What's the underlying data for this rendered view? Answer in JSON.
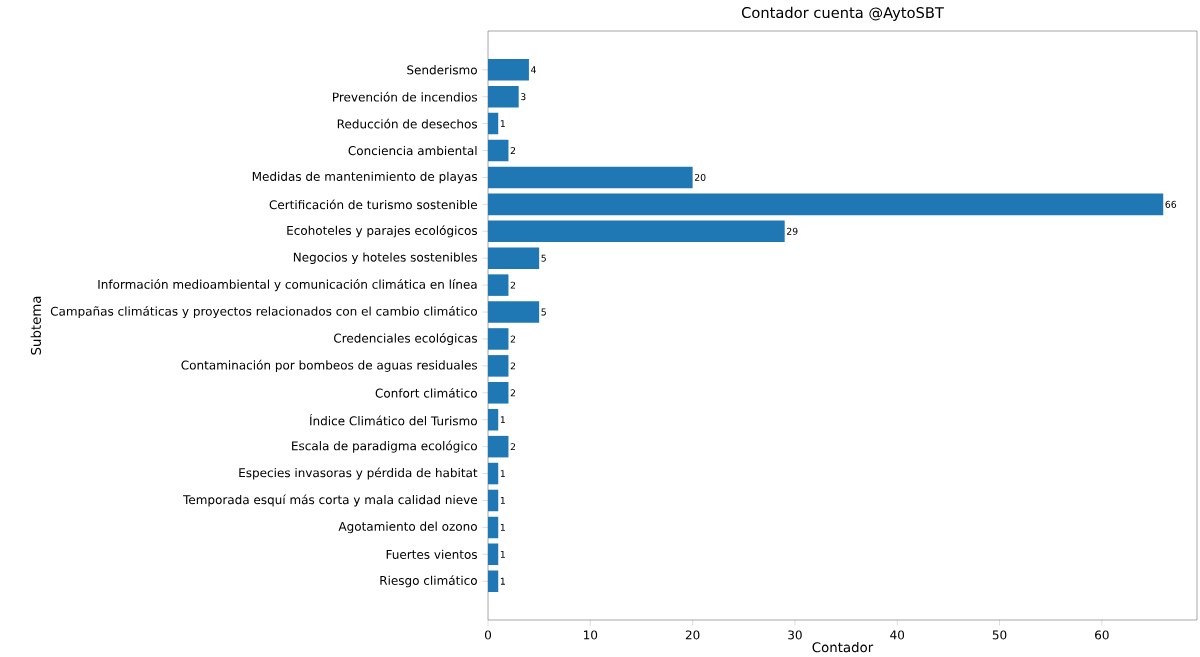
{
  "chart_data": {
    "type": "bar",
    "orientation": "horizontal",
    "title": "Contador cuenta @AytoSBT",
    "xlabel": "Contador",
    "ylabel": "Subtema",
    "categories": [
      "Senderismo",
      "Prevención de incendios",
      "Reducción de desechos",
      "Conciencia ambiental",
      "Medidas de mantenimiento de playas",
      "Certificación de turismo sostenible",
      "Ecohoteles y parajes ecológicos",
      "Negocios y hoteles sostenibles",
      "Información medioambiental y comunicación climática en línea",
      "Campañas climáticas y proyectos relacionados con el cambio climático",
      "Credenciales ecológicas",
      "Contaminación por bombeos de aguas residuales",
      "Confort climático",
      "Índice Climático del Turismo",
      "Escala de paradigma ecológico",
      "Especies invasoras y pérdida de habitat",
      "Temporada esquí más corta y mala calidad nieve",
      "Agotamiento del ozono",
      "Fuertes vientos",
      "Riesgo climático"
    ],
    "values": [
      4,
      3,
      1,
      2,
      20,
      66,
      29,
      5,
      2,
      5,
      2,
      2,
      2,
      1,
      2,
      1,
      1,
      1,
      1,
      1
    ],
    "color": "#1f77b4",
    "data_labels": true,
    "grid": false,
    "xlim": [
      0,
      69.3
    ],
    "xticks": [
      0,
      10,
      20,
      30,
      40,
      50,
      60
    ]
  }
}
